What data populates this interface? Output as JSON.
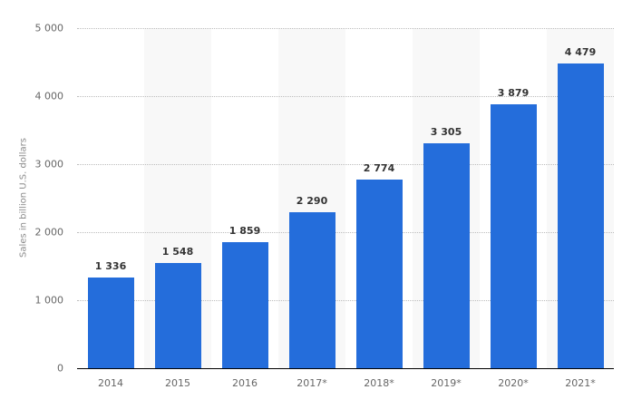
{
  "chart_data": {
    "type": "bar",
    "title": "",
    "xlabel": "",
    "ylabel": "Sales in billion U.S. dollars",
    "categories": [
      "2014",
      "2015",
      "2016",
      "2017*",
      "2018*",
      "2019*",
      "2020*",
      "2021*"
    ],
    "values": [
      1336,
      1548,
      1859,
      2290,
      2774,
      3305,
      3879,
      4479
    ],
    "value_labels": [
      "1 336",
      "1 548",
      "1 859",
      "2 290",
      "2 774",
      "3 305",
      "3 879",
      "4 479"
    ],
    "ylim": [
      0,
      5000
    ],
    "yticks": [
      0,
      1000,
      2000,
      3000,
      4000,
      5000
    ],
    "ytick_labels": [
      "0",
      "1 000",
      "2 000",
      "3 000",
      "4 000",
      "5 000"
    ],
    "grid": true,
    "legend": null,
    "colors": {
      "bar": "#246ddb",
      "band_alt": "#f8f8f8",
      "grid": "#bdbdbd"
    }
  }
}
